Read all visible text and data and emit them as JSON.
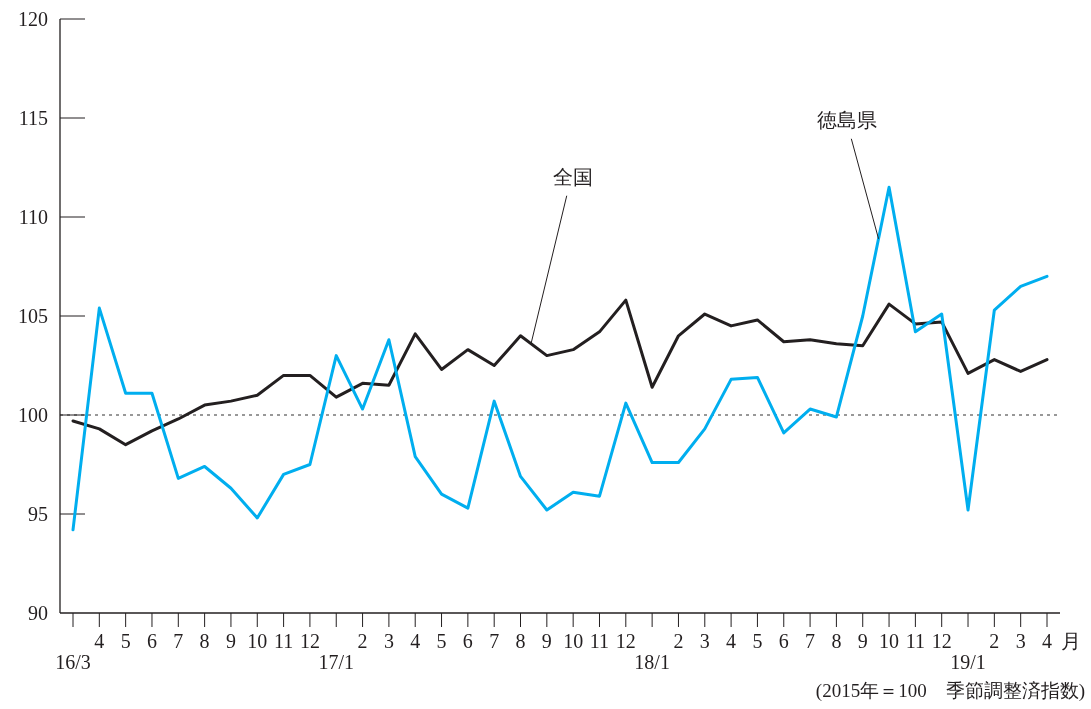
{
  "chart_data": {
    "type": "line",
    "categories": [
      "16/3",
      "4",
      "5",
      "6",
      "7",
      "8",
      "9",
      "10",
      "11",
      "12",
      "17/1",
      "2",
      "3",
      "4",
      "5",
      "6",
      "7",
      "8",
      "9",
      "10",
      "11",
      "12",
      "18/1",
      "2",
      "3",
      "4",
      "5",
      "6",
      "7",
      "8",
      "9",
      "10",
      "11",
      "12",
      "19/1",
      "2",
      "3",
      "4"
    ],
    "series": [
      {
        "name": "全国",
        "color": "#231f20",
        "values": [
          99.7,
          99.3,
          98.5,
          99.2,
          99.8,
          100.5,
          100.7,
          101.0,
          102.0,
          102.0,
          100.9,
          101.6,
          101.5,
          104.1,
          102.3,
          103.3,
          102.5,
          104.0,
          103.0,
          103.3,
          104.2,
          105.8,
          101.4,
          104.0,
          105.1,
          104.5,
          104.8,
          103.7,
          103.8,
          103.6,
          103.5,
          105.6,
          104.6,
          104.7,
          102.1,
          102.8,
          102.2,
          102.8
        ]
      },
      {
        "name": "徳島県",
        "color": "#00aeef",
        "values": [
          94.2,
          105.4,
          101.1,
          101.1,
          96.8,
          97.4,
          96.3,
          94.8,
          97.0,
          97.5,
          103.0,
          100.3,
          103.8,
          97.9,
          96.0,
          95.3,
          100.7,
          96.9,
          95.2,
          96.1,
          95.9,
          100.6,
          97.6,
          97.6,
          99.3,
          101.8,
          101.9,
          99.1,
          100.3,
          99.9,
          105.0,
          111.5,
          104.2,
          105.1,
          95.2,
          105.3,
          106.5,
          107.0
        ]
      }
    ],
    "xlabel": "月",
    "ylim": [
      90,
      120
    ],
    "yticks": [
      90,
      95,
      100,
      105,
      110,
      115,
      120
    ],
    "ref_lines": [
      {
        "axis": "y",
        "value": 100,
        "color": "#333333",
        "line_style": "dotted"
      }
    ],
    "annotations": [
      "(2015年＝100　季節調整済指数)"
    ],
    "legend": false,
    "grid": false,
    "marker": "none",
    "line_style": "solid"
  }
}
